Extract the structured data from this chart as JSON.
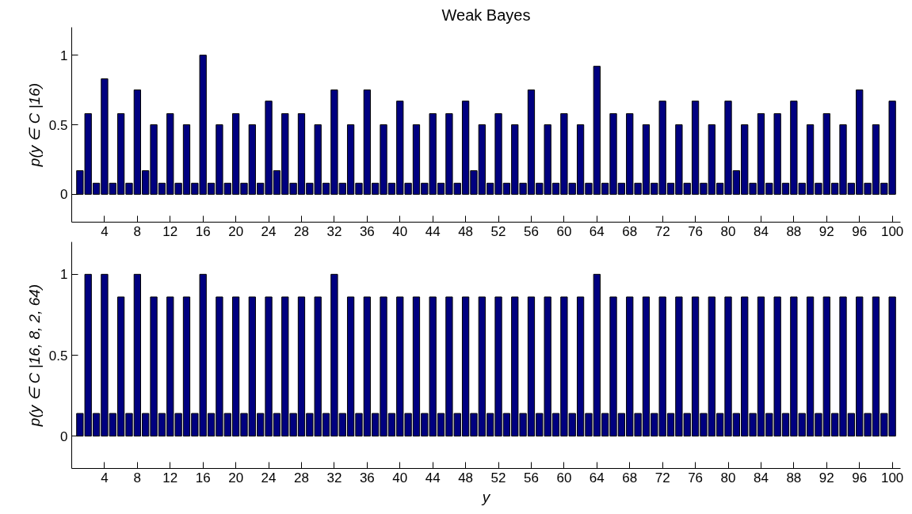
{
  "chart_data": [
    {
      "type": "bar",
      "title": "Weak Bayes",
      "ylabel": "p(y ∈ C |16)",
      "x": [
        1,
        2,
        3,
        4,
        5,
        6,
        7,
        8,
        9,
        10,
        11,
        12,
        13,
        14,
        15,
        16,
        17,
        18,
        19,
        20,
        21,
        22,
        23,
        24,
        25,
        26,
        27,
        28,
        29,
        30,
        31,
        32,
        33,
        34,
        35,
        36,
        37,
        38,
        39,
        40,
        41,
        42,
        43,
        44,
        45,
        46,
        47,
        48,
        49,
        50,
        51,
        52,
        53,
        54,
        55,
        56,
        57,
        58,
        59,
        60,
        61,
        62,
        63,
        64,
        65,
        66,
        67,
        68,
        69,
        70,
        71,
        72,
        73,
        74,
        75,
        76,
        77,
        78,
        79,
        80,
        81,
        82,
        83,
        84,
        85,
        86,
        87,
        88,
        89,
        90,
        91,
        92,
        93,
        94,
        95,
        96,
        97,
        98,
        99,
        100
      ],
      "values": [
        0.17,
        0.58,
        0.08,
        0.83,
        0.08,
        0.58,
        0.08,
        0.75,
        0.17,
        0.5,
        0.08,
        0.58,
        0.08,
        0.5,
        0.08,
        1,
        0.08,
        0.5,
        0.08,
        0.58,
        0.08,
        0.5,
        0.08,
        0.67,
        0.17,
        0.58,
        0.08,
        0.58,
        0.08,
        0.5,
        0.08,
        0.75,
        0.08,
        0.5,
        0.08,
        0.75,
        0.08,
        0.5,
        0.08,
        0.67,
        0.08,
        0.5,
        0.08,
        0.58,
        0.08,
        0.58,
        0.08,
        0.67,
        0.17,
        0.5,
        0.08,
        0.58,
        0.08,
        0.5,
        0.08,
        0.75,
        0.08,
        0.5,
        0.08,
        0.58,
        0.08,
        0.5,
        0.08,
        0.92,
        0.08,
        0.58,
        0.08,
        0.58,
        0.08,
        0.5,
        0.08,
        0.67,
        0.08,
        0.5,
        0.08,
        0.67,
        0.08,
        0.5,
        0.08,
        0.67,
        0.17,
        0.5,
        0.08,
        0.58,
        0.08,
        0.58,
        0.08,
        0.67,
        0.08,
        0.5,
        0.08,
        0.58,
        0.08,
        0.5,
        0.08,
        0.75,
        0.08,
        0.5,
        0.08,
        0.67
      ],
      "color": "#000080",
      "xlim": [
        0,
        101
      ],
      "xticks": [
        4,
        8,
        12,
        16,
        20,
        24,
        28,
        32,
        36,
        40,
        44,
        48,
        52,
        56,
        60,
        64,
        68,
        72,
        76,
        80,
        84,
        88,
        92,
        96,
        100
      ],
      "ylim": [
        -0.2,
        1.2
      ],
      "yticks": [
        0,
        0.5,
        1
      ],
      "grid": false
    },
    {
      "type": "bar",
      "ylabel": "p(y ∈ C |16, 8, 2, 64)",
      "xlabel": "y",
      "x": [
        1,
        2,
        3,
        4,
        5,
        6,
        7,
        8,
        9,
        10,
        11,
        12,
        13,
        14,
        15,
        16,
        17,
        18,
        19,
        20,
        21,
        22,
        23,
        24,
        25,
        26,
        27,
        28,
        29,
        30,
        31,
        32,
        33,
        34,
        35,
        36,
        37,
        38,
        39,
        40,
        41,
        42,
        43,
        44,
        45,
        46,
        47,
        48,
        49,
        50,
        51,
        52,
        53,
        54,
        55,
        56,
        57,
        58,
        59,
        60,
        61,
        62,
        63,
        64,
        65,
        66,
        67,
        68,
        69,
        70,
        71,
        72,
        73,
        74,
        75,
        76,
        77,
        78,
        79,
        80,
        81,
        82,
        83,
        84,
        85,
        86,
        87,
        88,
        89,
        90,
        91,
        92,
        93,
        94,
        95,
        96,
        97,
        98,
        99,
        100
      ],
      "values": [
        0.14,
        1,
        0.14,
        1,
        0.14,
        0.86,
        0.14,
        1,
        0.14,
        0.86,
        0.14,
        0.86,
        0.14,
        0.86,
        0.14,
        1,
        0.14,
        0.86,
        0.14,
        0.86,
        0.14,
        0.86,
        0.14,
        0.86,
        0.14,
        0.86,
        0.14,
        0.86,
        0.14,
        0.86,
        0.14,
        1,
        0.14,
        0.86,
        0.14,
        0.86,
        0.14,
        0.86,
        0.14,
        0.86,
        0.14,
        0.86,
        0.14,
        0.86,
        0.14,
        0.86,
        0.14,
        0.86,
        0.14,
        0.86,
        0.14,
        0.86,
        0.14,
        0.86,
        0.14,
        0.86,
        0.14,
        0.86,
        0.14,
        0.86,
        0.14,
        0.86,
        0.14,
        1,
        0.14,
        0.86,
        0.14,
        0.86,
        0.14,
        0.86,
        0.14,
        0.86,
        0.14,
        0.86,
        0.14,
        0.86,
        0.14,
        0.86,
        0.14,
        0.86,
        0.14,
        0.86,
        0.14,
        0.86,
        0.14,
        0.86,
        0.14,
        0.86,
        0.14,
        0.86,
        0.14,
        0.86,
        0.14,
        0.86,
        0.14,
        0.86,
        0.14,
        0.86,
        0.14,
        0.86
      ],
      "color": "#000080",
      "xlim": [
        0,
        101
      ],
      "xticks": [
        4,
        8,
        12,
        16,
        20,
        24,
        28,
        32,
        36,
        40,
        44,
        48,
        52,
        56,
        60,
        64,
        68,
        72,
        76,
        80,
        84,
        88,
        92,
        96,
        100
      ],
      "ylim": [
        -0.2,
        1.2
      ],
      "yticks": [
        0,
        0.5,
        1
      ],
      "grid": false
    }
  ]
}
